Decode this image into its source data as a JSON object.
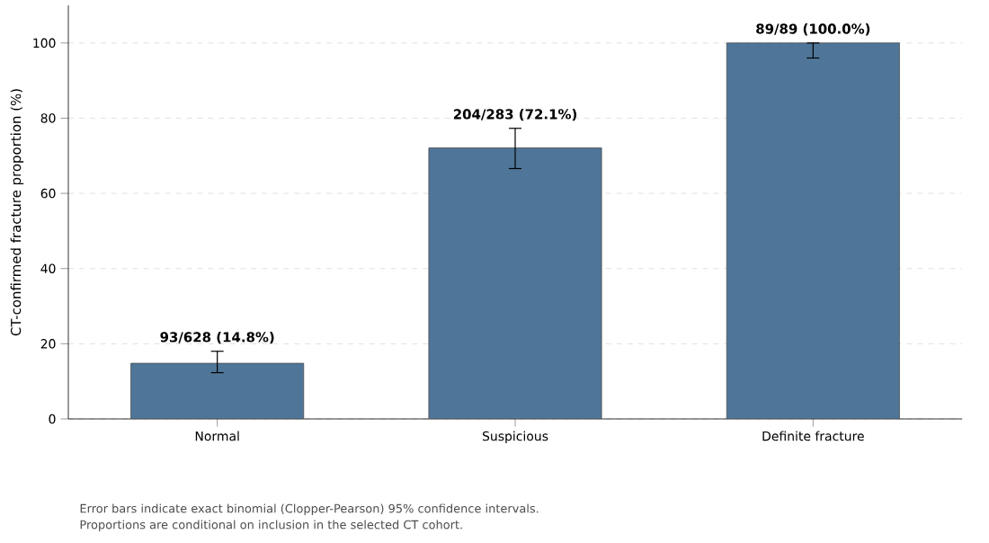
{
  "chart_data": {
    "type": "bar",
    "ylabel": "CT-confirmed fracture proportion (%)",
    "categories": [
      "Normal",
      "Suspicious",
      "Definite fracture"
    ],
    "values": [
      14.8,
      72.1,
      100.0
    ],
    "errors": [
      [
        12.3,
        18.0
      ],
      [
        66.6,
        77.3
      ],
      [
        96.0,
        100.0
      ]
    ],
    "value_labels": [
      "93/628 (14.8%)",
      "204/283 (72.1%)",
      "89/89 (100.0%)"
    ],
    "color": "#4f7698",
    "ylim": [
      0,
      110
    ],
    "yticks": [
      0,
      20,
      40,
      60,
      80,
      100
    ],
    "grid": "y",
    "annotations": [
      "Error bars indicate exact binomial (Clopper-Pearson) 95% confidence intervals.",
      "Proportions are conditional on inclusion in the selected CT cohort."
    ]
  }
}
